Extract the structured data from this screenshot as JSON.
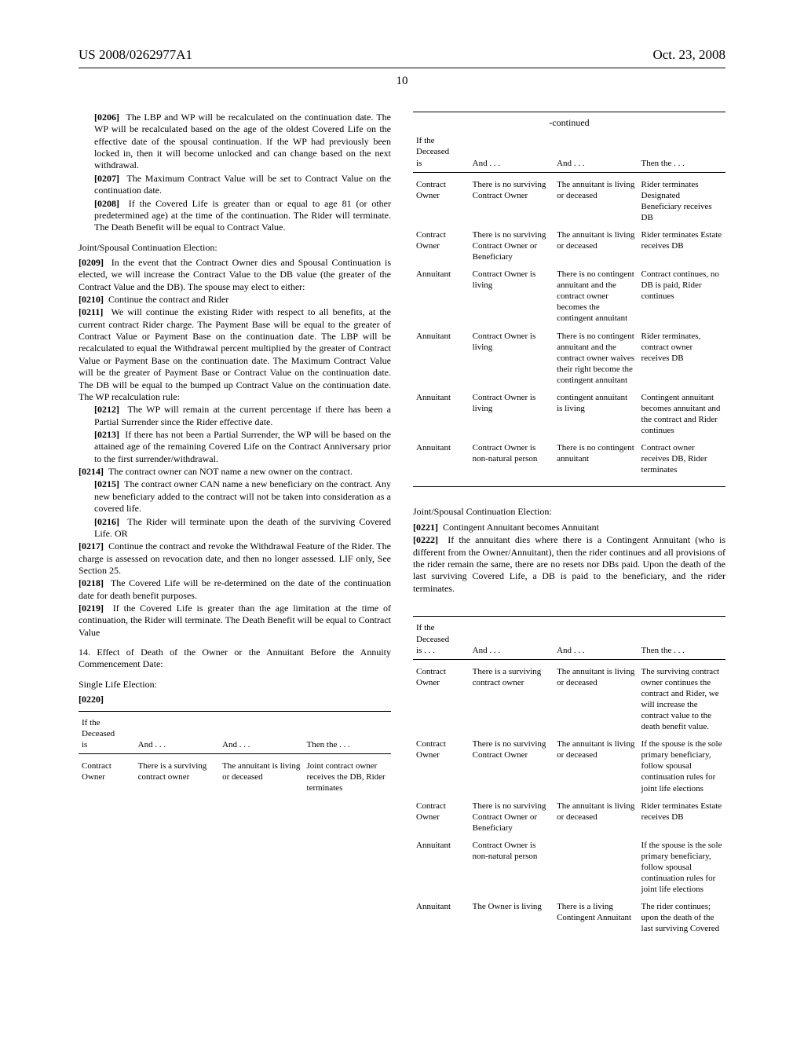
{
  "header": {
    "patent_no": "US 2008/0262977A1",
    "date": "Oct. 23, 2008"
  },
  "page_number": "10",
  "left": {
    "p0206_num": "[0206]",
    "p0206": "The LBP and WP will be recalculated on the continuation date. The WP will be recalculated based on the age of the oldest Covered Life on the effective date of the spousal continuation. If the WP had previously been locked in, then it will become unlocked and can change based on the next withdrawal.",
    "p0207_num": "[0207]",
    "p0207": "The Maximum Contract Value will be set to Contract Value on the continuation date.",
    "p0208_num": "[0208]",
    "p0208": "If the Covered Life is greater than or equal to age 81 (or other predetermined age) at the time of the continuation. The Rider will terminate. The Death Benefit will be equal to Contract Value.",
    "joint_head": "Joint/Spousal Continuation Election:",
    "p0209_num": "[0209]",
    "p0209": "In the event that the Contract Owner dies and Spousal Continuation is elected, we will increase the Contract Value to the DB value (the greater of the Contract Value and the DB). The spouse may elect to either:",
    "p0210_num": "[0210]",
    "p0210": "Continue the contract and Rider",
    "p0211_num": "[0211]",
    "p0211": "We will continue the existing Rider with respect to all benefits, at the current contract Rider charge. The Payment Base will be equal to the greater of Contract Value or Payment Base on the continuation date. The LBP will be recalculated to equal the Withdrawal percent multiplied by the greater of Contract Value or Payment Base on the continuation date. The Maximum Contract Value will be the greater of Payment Base or Contract Value on the continuation date. The DB will be equal to the bumped up Contract Value on the continuation date. The WP recalculation rule:",
    "p0212_num": "[0212]",
    "p0212": "The WP will remain at the current percentage if there has been a Partial Surrender since the Rider effective date.",
    "p0213_num": "[0213]",
    "p0213": "If there has not been a Partial Surrender, the WP will be based on the attained age of the remaining Covered Life on the Contract Anniversary prior to the first surrender/withdrawal.",
    "p0214_num": "[0214]",
    "p0214": "The contract owner can NOT name a new owner on the contract.",
    "p0215_num": "[0215]",
    "p0215": "The contract owner CAN name a new beneficiary on the contract. Any new beneficiary added to the contract will not be taken into consideration as a covered life.",
    "p0216_num": "[0216]",
    "p0216": "The Rider will terminate upon the death of the surviving Covered Life. OR",
    "p0217_num": "[0217]",
    "p0217": "Continue the contract and revoke the Withdrawal Feature of the Rider. The charge is assessed on revocation date, and then no longer assessed. LIF only, See Section 25.",
    "p0218_num": "[0218]",
    "p0218": "The Covered Life will be re-determined on the date of the continuation date for death benefit purposes.",
    "p0219_num": "[0219]",
    "p0219": "If the Covered Life is greater than the age limitation at the time of continuation, the Rider will terminate. The Death Benefit will be equal to Contract Value",
    "sec14": "14. Effect of Death of the Owner or the Annuitant Before the Annuity Commencement Date:",
    "single_life": "Single Life Election:",
    "p0220_num": "[0220]"
  },
  "continued_label": "-continued",
  "tbl_headers": {
    "c1a": "If the",
    "c1b": "Deceased",
    "c1c": "is",
    "c1d": "is . . .",
    "c2": "And . . .",
    "c3": "And . . .",
    "c4": "Then the . . ."
  },
  "table1": {
    "rows": [
      [
        "Contract Owner",
        "There is a surviving contract owner",
        "The annuitant is living or deceased",
        "Joint contract owner receives the DB, Rider terminates"
      ]
    ]
  },
  "table1_cont": {
    "rows": [
      [
        "Contract Owner",
        "There is no surviving Contract Owner",
        "The annuitant is living or deceased",
        "Rider terminates Designated Beneficiary receives DB"
      ],
      [
        "Contract Owner",
        "There is no surviving Contract Owner or Beneficiary",
        "The annuitant is living or deceased",
        "Rider terminates Estate receives DB"
      ],
      [
        "Annuitant",
        "Contract Owner is living",
        "There is no contingent annuitant and the contract owner becomes the contingent annuitant",
        "Contract continues, no DB is paid, Rider continues"
      ],
      [
        "Annuitant",
        "Contract Owner is living",
        "There is no contingent annuitant and the contract owner waives their right become the contingent annuitant",
        "Rider terminates, contract owner receives DB"
      ],
      [
        "Annuitant",
        "Contract Owner is living",
        "contingent annuitant is living",
        "Contingent annuitant becomes annuitant and the contract and Rider continues"
      ],
      [
        "Annuitant",
        "Contract Owner is non-natural person",
        "There is no contingent annuitant",
        "Contract owner receives DB, Rider terminates"
      ]
    ]
  },
  "right": {
    "joint_head2": "Joint/Spousal Continuation Election:",
    "p0221_num": "[0221]",
    "p0221": "Contingent Annuitant becomes Annuitant",
    "p0222_num": "[0222]",
    "p0222": "If the annuitant dies where there is a Contingent Annuitant (who is different from the Owner/Annuitant), then the rider continues and all provisions of the rider remain the same, there are no resets nor DBs paid. Upon the death of the last surviving Covered Life, a DB is paid to the beneficiary, and the rider terminates."
  },
  "table2": {
    "rows": [
      [
        "Contract Owner",
        "There is a surviving contract owner",
        "The annuitant is living or deceased",
        "The surviving contract owner continues the contract and Rider, we will increase the contract value to the death benefit value."
      ],
      [
        "Contract Owner",
        "There is no surviving Contract Owner",
        "The annuitant is living or deceased",
        "If the spouse is the sole primary beneficiary, follow spousal continuation rules for joint life elections"
      ],
      [
        "Contract Owner",
        "There is no surviving Contract Owner or Beneficiary",
        "The annuitant is living or deceased",
        "Rider terminates Estate receives DB"
      ],
      [
        "Annuitant",
        "Contract Owner is non-natural person",
        "",
        "If the spouse is the sole primary beneficiary, follow spousal continuation rules for joint life elections"
      ],
      [
        "Annuitant",
        "The Owner is living",
        "There is a living Contingent Annuitant",
        "The rider continues; upon the death of the last surviving Covered"
      ]
    ]
  },
  "widths": {
    "c1": "18%",
    "c2": "27%",
    "c3": "27%",
    "c4": "28%"
  }
}
